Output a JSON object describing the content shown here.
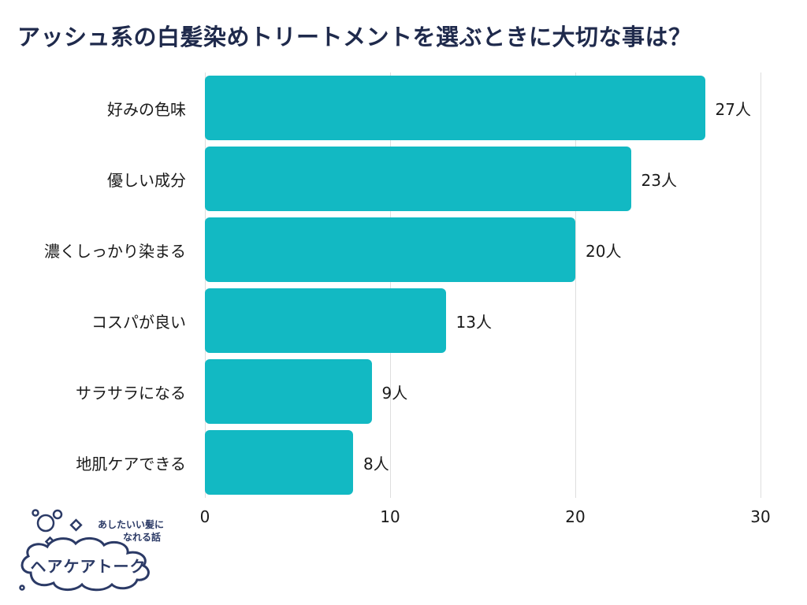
{
  "title": "アッシュ系の白髪染めトリートメントを選ぶときに大切な事は？",
  "colors": {
    "bar": "#12b9c3",
    "title": "#1f2a4c",
    "grid": "#dedede",
    "text": "#1a1a1a",
    "logo": "#2b3a66"
  },
  "chart_data": {
    "type": "bar",
    "orientation": "horizontal",
    "title": "アッシュ系の白髪染めトリートメントを選ぶときに大切な事は？",
    "categories": [
      "好みの色味",
      "優しい成分",
      "濃くしっかり染まる",
      "コスパが良い",
      "サラサラになる",
      "地肌ケアできる"
    ],
    "values": [
      27,
      23,
      20,
      13,
      9,
      8
    ],
    "value_labels": [
      "27人",
      "23人",
      "20人",
      "13人",
      "9人",
      "8人"
    ],
    "unit": "人",
    "xlim": [
      0,
      30
    ],
    "xticks": [
      0,
      10,
      20,
      30
    ],
    "grid": "vertical",
    "legend": "none"
  },
  "logo": {
    "tagline_line1": "あしたいい髪に",
    "tagline_line2": "なれる話",
    "name": "ヘアケアトーク"
  }
}
